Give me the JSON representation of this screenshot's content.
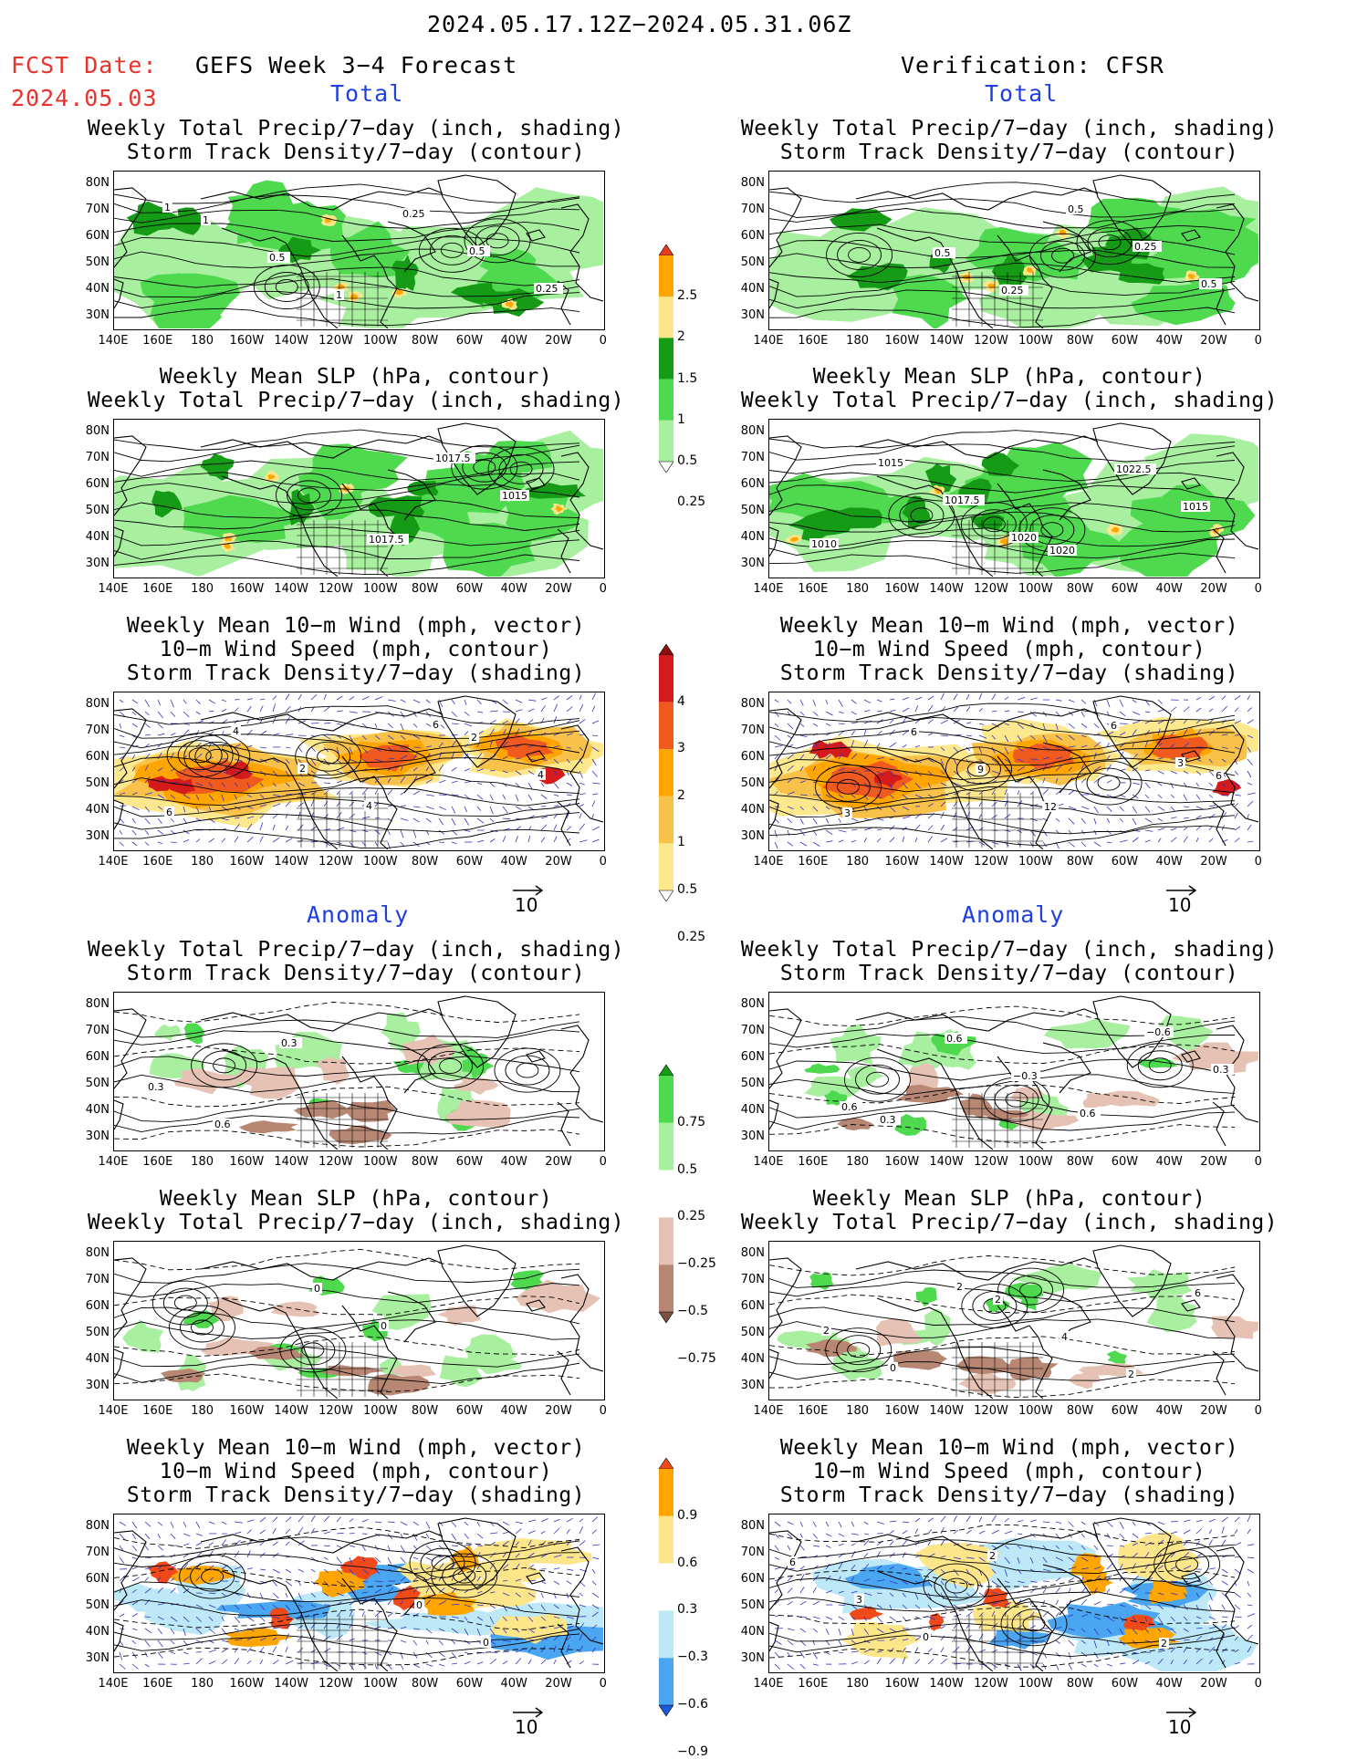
{
  "header": {
    "date_range": "2024.05.17.12Z−2024.05.31.06Z",
    "fcst_label": "FCST Date:",
    "fcst_date": "2024.05.03",
    "forecast_title": "GEFS Week 3−4 Forecast",
    "verification_title": "Verification: CFSR"
  },
  "sections": {
    "total": "Total",
    "anomaly": "Anomaly"
  },
  "titles": {
    "precip_storm": "Weekly Total Precip/7−day (inch, shading)\nStorm Track Density/7−day (contour)",
    "slp_precip": "Weekly Mean SLP (hPa, contour)\nWeekly Total Precip/7−day (inch, shading)",
    "wind": "Weekly Mean 10−m Wind (mph, vector)\n10−m Wind Speed (mph, contour)\nStorm Track Density/7−day (shading)"
  },
  "axes": {
    "lat_labels": [
      "80N",
      "70N",
      "60N",
      "50N",
      "40N",
      "30N"
    ],
    "lon_labels": [
      "140E",
      "160E",
      "180",
      "160W",
      "140W",
      "120W",
      "100W",
      "80W",
      "60W",
      "40W",
      "20W",
      "0"
    ]
  },
  "vector_ref": "10",
  "colorbars": {
    "precip_total": {
      "labels": [
        "2.5",
        "2",
        "1.5",
        "1",
        "0.5",
        "0.25"
      ],
      "colors": [
        "#e63b22",
        "#ffa500",
        "#fde68a",
        "#169b16",
        "#4fd94f",
        "#a8f0a0",
        "#ffffff"
      ]
    },
    "storm_total": {
      "labels": [
        "4",
        "3",
        "2",
        "1",
        "0.5",
        "0.25"
      ],
      "colors": [
        "#8b0d0d",
        "#d41a1a",
        "#f05a1e",
        "#ffa500",
        "#f8c14a",
        "#fde88e",
        "#ffffff"
      ]
    },
    "precip_anom": {
      "labels": [
        "0.75",
        "0.5",
        "0.25",
        "−0.25",
        "−0.5",
        "−0.75"
      ],
      "colors": [
        "#169b16",
        "#4fd94f",
        "#a8f0a0",
        "#ffffff",
        "#e6c2b4",
        "#b78774",
        "#7a5040"
      ]
    },
    "storm_anom": {
      "labels": [
        "0.9",
        "0.6",
        "0.3",
        "−0.3",
        "−0.6",
        "−0.9"
      ],
      "colors": [
        "#f04a1a",
        "#ffa500",
        "#fde68a",
        "#ffffff",
        "#bce8f8",
        "#4aa6f0",
        "#1a5ad6"
      ]
    }
  },
  "contour_labels": {
    "t1l": [
      "1",
      "0.5",
      "1",
      "0.25",
      "0.5",
      "0.25",
      "1"
    ],
    "t1r": [
      "0.5",
      "0.25",
      "0.5",
      "0.25",
      "0.5"
    ],
    "t2l": [
      "1017.5",
      "1017.5",
      "1015"
    ],
    "t2r": [
      "1020",
      "1022.5",
      "1015",
      "1010",
      "1015",
      "1017.5",
      "1020"
    ],
    "t3l": [
      "2",
      "4",
      "6",
      "4",
      "2",
      "4",
      "6"
    ],
    "t3r": [
      "6",
      "3",
      "6",
      "9",
      "12",
      "6",
      "3"
    ],
    "a1l": [
      "0.3",
      "0.6",
      "0.3"
    ],
    "a1r": [
      "0.3",
      "0.6",
      "−0.3",
      "0.6",
      "−0.6",
      "0.3",
      "0.6"
    ],
    "a2l": [
      "0",
      "0"
    ],
    "a2r": [
      "2",
      "4",
      "2",
      "6",
      "2",
      "0",
      "2"
    ],
    "a3l": [
      "0",
      "0"
    ],
    "a3r": [
      "2",
      "6",
      "3",
      "0",
      "2"
    ]
  }
}
